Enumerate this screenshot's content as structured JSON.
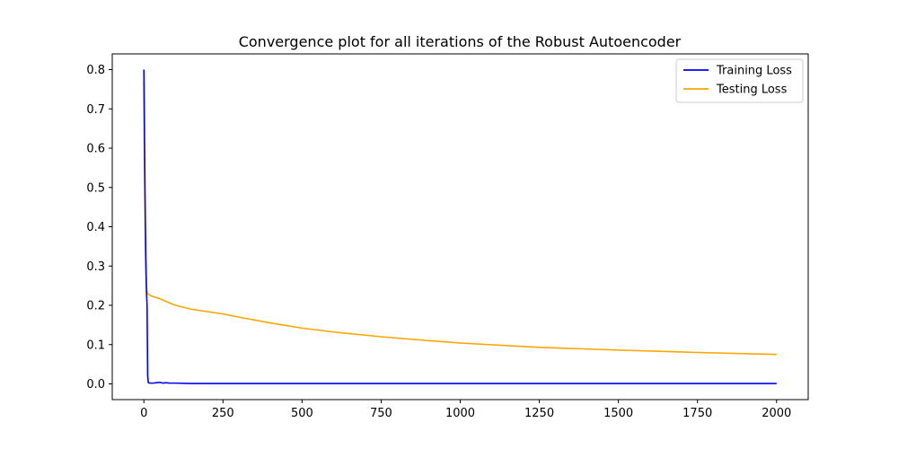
{
  "chart_data": {
    "type": "line",
    "title": "Convergence plot for all iterations of the Robust Autoencoder",
    "xlabel": "",
    "ylabel": "",
    "xlim": [
      -100,
      2100
    ],
    "ylim": [
      -0.04,
      0.84
    ],
    "x_ticks": [
      0,
      250,
      500,
      750,
      1000,
      1250,
      1500,
      1750,
      2000
    ],
    "y_ticks": [
      0.0,
      0.1,
      0.2,
      0.3,
      0.4,
      0.5,
      0.6,
      0.7,
      0.8
    ],
    "x_tick_labels": [
      "0",
      "250",
      "500",
      "750",
      "1000",
      "1250",
      "1500",
      "1750",
      "2000"
    ],
    "y_tick_labels": [
      "0.0",
      "0.1",
      "0.2",
      "0.3",
      "0.4",
      "0.5",
      "0.6",
      "0.7",
      "0.8"
    ],
    "grid": false,
    "legend_position": "top-right",
    "series": [
      {
        "name": "Training Loss",
        "color": "#0000ff",
        "x": [
          0,
          2,
          4,
          6,
          8,
          10,
          12,
          14,
          20,
          30,
          40,
          50,
          60,
          70,
          80,
          100,
          150,
          200,
          300,
          500,
          750,
          1000,
          1250,
          1500,
          1750,
          2000
        ],
        "y": [
          0.8,
          0.62,
          0.45,
          0.32,
          0.24,
          0.2,
          0.02,
          0.003,
          0.002,
          0.002,
          0.003,
          0.004,
          0.002,
          0.003,
          0.002,
          0.002,
          0.001,
          0.001,
          0.001,
          0.001,
          0.001,
          0.001,
          0.001,
          0.001,
          0.001,
          0.001
        ]
      },
      {
        "name": "Testing Loss",
        "color": "#ffa500",
        "x": [
          0,
          2,
          4,
          6,
          8,
          10,
          12,
          15,
          20,
          30,
          50,
          75,
          100,
          150,
          200,
          250,
          300,
          400,
          500,
          600,
          750,
          900,
          1000,
          1250,
          1500,
          1750,
          2000
        ],
        "y": [
          0.77,
          0.55,
          0.4,
          0.3,
          0.25,
          0.235,
          0.23,
          0.228,
          0.225,
          0.222,
          0.217,
          0.208,
          0.2,
          0.19,
          0.184,
          0.178,
          0.17,
          0.155,
          0.142,
          0.132,
          0.12,
          0.11,
          0.104,
          0.093,
          0.086,
          0.08,
          0.075
        ]
      }
    ]
  }
}
